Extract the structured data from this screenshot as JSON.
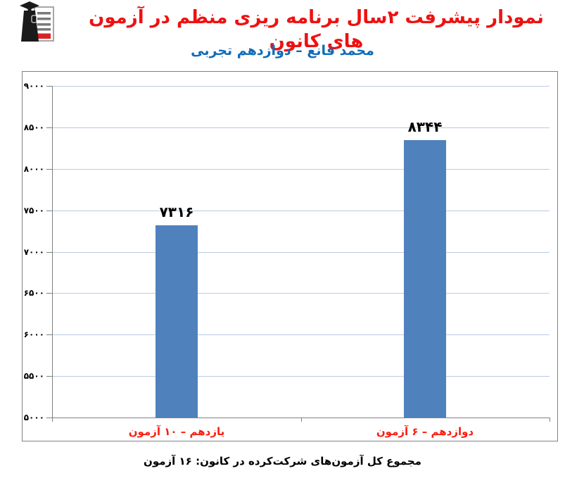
{
  "header": {
    "title": "نمودار پیشرفت ۲سال برنامه ریزی منظم در آزمون های کانون",
    "subtitle": "محمد قانع – دوازدهم تجربی",
    "logo": "kanoon-graduate-logo"
  },
  "footer": {
    "caption": "مجموع کل آزمون‌های شرکت‌کرده در کانون:  ۱۶ آزمون"
  },
  "colors": {
    "title_red": "#ee1111",
    "subtitle_blue": "#0f6bb8",
    "bar_blue": "#4f81bd",
    "gridline_blue": "#b8cce4",
    "axis_gray": "#808080",
    "xlabel_red": "#fb1d10",
    "logo_red": "#d92323",
    "logo_black": "#1a1a1a"
  },
  "chart_data": {
    "type": "bar",
    "title": "نمودار پیشرفت ۲سال برنامه ریزی منظم در آزمون های کانون",
    "subtitle": "محمد قانع – دوازدهم تجربی",
    "categories": [
      "یازدهم – ۱۰ آزمون",
      "دوازدهم – ۶ آزمون"
    ],
    "values": [
      7316,
      8344
    ],
    "value_labels": [
      "۷۳۱۶",
      "۸۳۴۴"
    ],
    "ylim": [
      5000,
      9000
    ],
    "ytick_step": 500,
    "yticks": [
      9000,
      8500,
      8000,
      7500,
      7000,
      6500,
      6000,
      5500,
      5000
    ],
    "ytick_labels": [
      "۹۰۰۰",
      "۸۵۰۰",
      "۸۰۰۰",
      "۷۵۰۰",
      "۷۰۰۰",
      "۶۵۰۰",
      "۶۰۰۰",
      "۵۵۰۰",
      "۵۰۰۰"
    ],
    "grid": true,
    "legend": "none",
    "xlabel": "",
    "ylabel": ""
  }
}
